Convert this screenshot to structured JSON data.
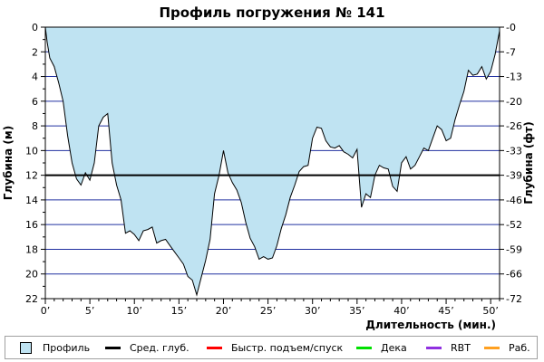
{
  "chart_data": {
    "type": "area",
    "title": "Профиль погружения № 141",
    "xlabel": "Длительность (мин.)",
    "ylabel_left": "Глубина (м)",
    "ylabel_right": "Глубина (фт)",
    "x_range": [
      0,
      51
    ],
    "y_range_m": [
      0,
      22
    ],
    "y_range_ft": [
      0,
      72
    ],
    "x_ticks": [
      0,
      5,
      10,
      15,
      20,
      25,
      30,
      35,
      40,
      45,
      50
    ],
    "x_tick_labels": [
      "0’",
      "5’",
      "10’",
      "15’",
      "20’",
      "25’",
      "30’",
      "35’",
      "40’",
      "45’",
      "50’"
    ],
    "y_ticks_m": [
      0,
      2,
      4,
      6,
      8,
      10,
      12,
      14,
      16,
      18,
      20,
      22
    ],
    "y_ticks_ft": [
      0,
      7,
      13,
      20,
      26,
      33,
      39,
      46,
      52,
      59,
      66,
      72
    ],
    "grid": true,
    "avg_depth_m": 12,
    "colors": {
      "profile_fill": "#bfe3f2",
      "profile_line": "#000000",
      "grid": "#2030a0",
      "avg_depth": "#000000",
      "fast": "#ff0000",
      "deco": "#00e000",
      "rbt": "#9030e0",
      "work": "#ffa020"
    },
    "series": [
      {
        "name": "Профиль",
        "x": [
          0,
          0.2,
          0.5,
          1,
          1.5,
          2,
          2.5,
          3,
          3.5,
          4,
          4.5,
          5,
          5.5,
          6,
          6.5,
          7,
          7.5,
          8,
          8.5,
          9,
          9.5,
          10,
          10.5,
          11,
          11.5,
          12,
          12.5,
          13,
          13.5,
          14,
          14.5,
          15,
          15.5,
          16,
          16.5,
          17,
          17.5,
          18,
          18.5,
          19,
          19.5,
          20,
          20.5,
          21,
          21.5,
          22,
          22.5,
          23,
          23.5,
          24,
          24.5,
          25,
          25.5,
          26,
          26.5,
          27,
          27.5,
          28,
          28.5,
          29,
          29.5,
          30,
          30.5,
          31,
          31.5,
          32,
          32.5,
          33,
          33.5,
          34,
          34.5,
          35,
          35.5,
          36,
          36.5,
          37,
          37.5,
          38,
          38.5,
          39,
          39.5,
          40,
          40.5,
          41,
          41.5,
          42,
          42.5,
          43,
          43.5,
          44,
          44.5,
          45,
          45.5,
          46,
          46.5,
          47,
          47.5,
          48,
          48.5,
          49,
          49.5,
          50,
          50.5,
          51
        ],
        "values": [
          0,
          1.2,
          2.5,
          3.2,
          4.5,
          6,
          8.8,
          11,
          12.3,
          12.8,
          11.8,
          12.4,
          11,
          8,
          7.3,
          7,
          11,
          12.8,
          14,
          16.7,
          16.5,
          16.8,
          17.3,
          16.5,
          16.4,
          16.2,
          17.5,
          17.3,
          17.2,
          17.7,
          18.2,
          18.7,
          19.2,
          20.2,
          20.5,
          21.7,
          20.3,
          18.9,
          17.2,
          13.5,
          12,
          10,
          11.8,
          12.6,
          13.2,
          14.2,
          15.8,
          17.1,
          17.8,
          18.8,
          18.6,
          18.8,
          18.7,
          17.7,
          16.3,
          15.2,
          13.8,
          12.8,
          11.7,
          11.3,
          11.2,
          9,
          8.1,
          8.2,
          9.2,
          9.7,
          9.8,
          9.6,
          10.1,
          10.3,
          10.6,
          9.9,
          14.6,
          13.5,
          13.8,
          12,
          11.2,
          11.4,
          11.5,
          12.9,
          13.3,
          11,
          10.5,
          11.5,
          11.2,
          10.5,
          9.8,
          10,
          9,
          8,
          8.3,
          9.2,
          9,
          7.5,
          6.3,
          5.2,
          3.5,
          3.9,
          3.8,
          3.2,
          4.2,
          3.6,
          2.2,
          0.3
        ]
      }
    ],
    "legend": [
      {
        "label": "Профиль",
        "kind": "box",
        "color": "#bfe3f2"
      },
      {
        "label": "Сред. глуб.",
        "kind": "line",
        "color": "#000000"
      },
      {
        "label": "Быстр. подъем/спуск",
        "kind": "line",
        "color": "#ff0000"
      },
      {
        "label": "Дека",
        "kind": "line",
        "color": "#00e000"
      },
      {
        "label": "RBT",
        "kind": "line",
        "color": "#9030e0"
      },
      {
        "label": "Раб.",
        "kind": "line",
        "color": "#ffa020"
      }
    ]
  }
}
